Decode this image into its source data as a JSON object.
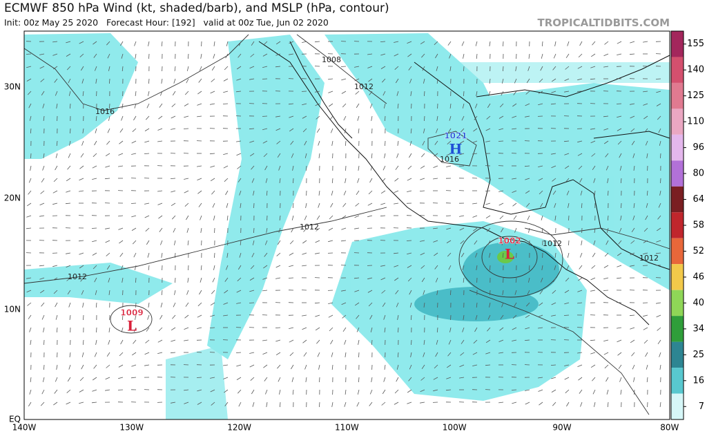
{
  "header": {
    "title": "ECMWF 850 hPa Wind (kt, shaded/barb), and MSLP (hPa, contour)",
    "subtitle": "Init: 00z May 25 2020   Forecast Hour: [192]   valid at 00z Tue, Jun 02 2020",
    "watermark": "TROPICALTIDBITS.COM"
  },
  "map": {
    "lat_labels": [
      "30N",
      "20N",
      "10N",
      "EQ"
    ],
    "lon_labels": [
      "140W",
      "130W",
      "120W",
      "110W",
      "100W",
      "90W",
      "80W"
    ],
    "centers": [
      {
        "pressure": "1021",
        "symbol": "H",
        "color": "#1f4fd6"
      },
      {
        "pressure": "1002",
        "symbol": "L",
        "color": "#d9203a"
      },
      {
        "pressure": "1009",
        "symbol": "L",
        "color": "#d9203a"
      }
    ],
    "contour_labels": [
      "1008",
      "1012",
      "1016",
      "1016",
      "1012",
      "1012",
      "1012",
      "1012"
    ]
  },
  "colorbar": {
    "ticks": [
      155,
      140,
      125,
      110,
      96,
      80,
      64,
      58,
      52,
      46,
      40,
      34,
      25,
      16,
      7
    ],
    "colors": [
      "#a3275c",
      "#d4506e",
      "#e07a90",
      "#eaa7c2",
      "#e4b7ec",
      "#b271d8",
      "#7a1e22",
      "#c0262c",
      "#e8673a",
      "#f2c94a",
      "#8fd657",
      "#2f9e3a",
      "#2d8592",
      "#58c8cf",
      "#d6f7f8"
    ]
  }
}
